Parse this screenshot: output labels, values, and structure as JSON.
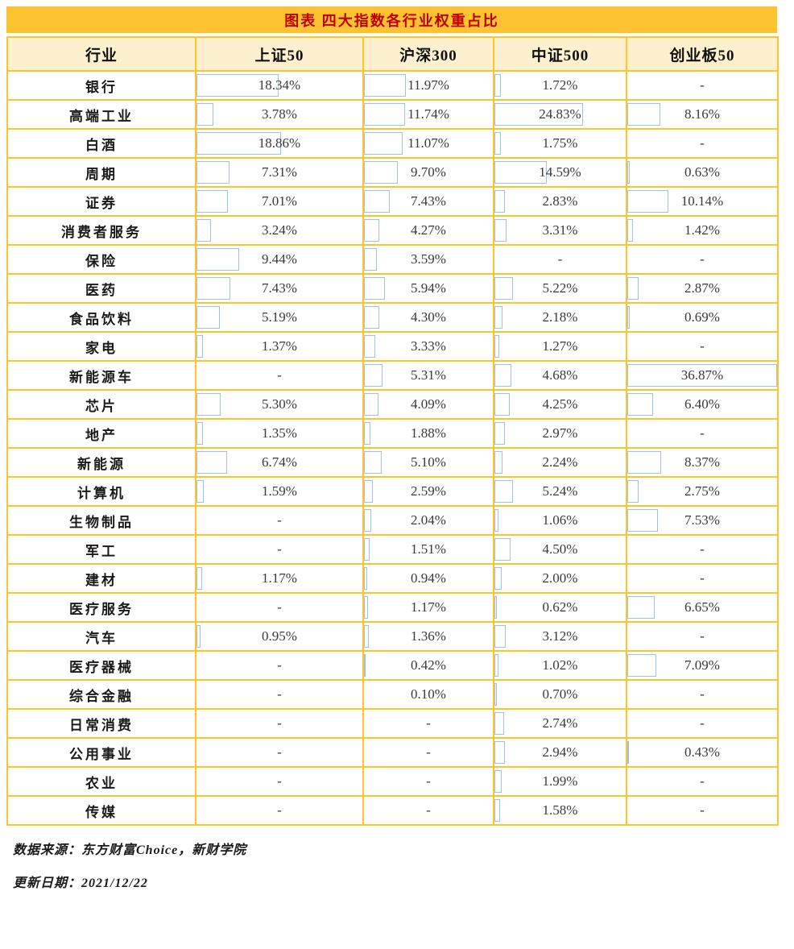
{
  "title": "图表 四大指数各行业权重占比",
  "table": {
    "columns": [
      "行业",
      "上证50",
      "沪深300",
      "中证500",
      "创业板50"
    ],
    "rows": [
      {
        "industry": "银行",
        "values": [
          "18.34%",
          "11.97%",
          "1.72%",
          "-"
        ]
      },
      {
        "industry": "高端工业",
        "values": [
          "3.78%",
          "11.74%",
          "24.83%",
          "8.16%"
        ]
      },
      {
        "industry": "白酒",
        "values": [
          "18.86%",
          "11.07%",
          "1.75%",
          "-"
        ]
      },
      {
        "industry": "周期",
        "values": [
          "7.31%",
          "9.70%",
          "14.59%",
          "0.63%"
        ]
      },
      {
        "industry": "证券",
        "values": [
          "7.01%",
          "7.43%",
          "2.83%",
          "10.14%"
        ]
      },
      {
        "industry": "消费者服务",
        "values": [
          "3.24%",
          "4.27%",
          "3.31%",
          "1.42%"
        ]
      },
      {
        "industry": "保险",
        "values": [
          "9.44%",
          "3.59%",
          "-",
          "-"
        ]
      },
      {
        "industry": "医药",
        "values": [
          "7.43%",
          "5.94%",
          "5.22%",
          "2.87%"
        ]
      },
      {
        "industry": "食品饮料",
        "values": [
          "5.19%",
          "4.30%",
          "2.18%",
          "0.69%"
        ]
      },
      {
        "industry": "家电",
        "values": [
          "1.37%",
          "3.33%",
          "1.27%",
          "-"
        ]
      },
      {
        "industry": "新能源车",
        "values": [
          "-",
          "5.31%",
          "4.68%",
          "36.87%"
        ]
      },
      {
        "industry": "芯片",
        "values": [
          "5.30%",
          "4.09%",
          "4.25%",
          "6.40%"
        ]
      },
      {
        "industry": "地产",
        "values": [
          "1.35%",
          "1.88%",
          "2.97%",
          "-"
        ]
      },
      {
        "industry": "新能源",
        "values": [
          "6.74%",
          "5.10%",
          "2.24%",
          "8.37%"
        ]
      },
      {
        "industry": "计算机",
        "values": [
          "1.59%",
          "2.59%",
          "5.24%",
          "2.75%"
        ]
      },
      {
        "industry": "生物制品",
        "values": [
          "-",
          "2.04%",
          "1.06%",
          "7.53%"
        ]
      },
      {
        "industry": "军工",
        "values": [
          "-",
          "1.51%",
          "4.50%",
          "-"
        ]
      },
      {
        "industry": "建材",
        "values": [
          "1.17%",
          "0.94%",
          "2.00%",
          "-"
        ]
      },
      {
        "industry": "医疗服务",
        "values": [
          "-",
          "1.17%",
          "0.62%",
          "6.65%"
        ]
      },
      {
        "industry": "汽车",
        "values": [
          "0.95%",
          "1.36%",
          "3.12%",
          "-"
        ]
      },
      {
        "industry": "医疗器械",
        "values": [
          "-",
          "0.42%",
          "1.02%",
          "7.09%"
        ]
      },
      {
        "industry": "综合金融",
        "values": [
          "-",
          "0.10%",
          "0.70%",
          "-"
        ]
      },
      {
        "industry": "日常消费",
        "values": [
          "-",
          "-",
          "2.74%",
          "-"
        ]
      },
      {
        "industry": "公用事业",
        "values": [
          "-",
          "-",
          "2.94%",
          "0.43%"
        ]
      },
      {
        "industry": "农业",
        "values": [
          "-",
          "-",
          "1.99%",
          "-"
        ]
      },
      {
        "industry": "传媒",
        "values": [
          "-",
          "-",
          "1.58%",
          "-"
        ]
      }
    ]
  },
  "footer": {
    "source_line": "数据来源：东方财富Choice，新财学院",
    "update_line": "更新日期：2021/12/22"
  },
  "colors": {
    "gold_band": "#FCC330",
    "border_gold": "#FFC32E",
    "header_bg": "#FCF0CE",
    "title_red": "#C00000",
    "databar_border": "#9CC2E5",
    "value_text": "#3A3A3A"
  },
  "chart_data": {
    "type": "table",
    "title": "图表 四大指数各行业权重占比",
    "categories": [
      "银行",
      "高端工业",
      "白酒",
      "周期",
      "证券",
      "消费者服务",
      "保险",
      "医药",
      "食品饮料",
      "家电",
      "新能源车",
      "芯片",
      "地产",
      "新能源",
      "计算机",
      "生物制品",
      "军工",
      "建材",
      "医疗服务",
      "汽车",
      "医疗器械",
      "综合金融",
      "日常消费",
      "公用事业",
      "农业",
      "传媒"
    ],
    "series": [
      {
        "name": "上证50",
        "values": [
          18.34,
          3.78,
          18.86,
          7.31,
          7.01,
          3.24,
          9.44,
          7.43,
          5.19,
          1.37,
          null,
          5.3,
          1.35,
          6.74,
          1.59,
          null,
          null,
          1.17,
          null,
          0.95,
          null,
          null,
          null,
          null,
          null,
          null
        ]
      },
      {
        "name": "沪深300",
        "values": [
          11.97,
          11.74,
          11.07,
          9.7,
          7.43,
          4.27,
          3.59,
          5.94,
          4.3,
          3.33,
          5.31,
          4.09,
          1.88,
          5.1,
          2.59,
          2.04,
          1.51,
          0.94,
          1.17,
          1.36,
          0.42,
          0.1,
          null,
          null,
          null,
          null
        ]
      },
      {
        "name": "中证500",
        "values": [
          1.72,
          24.83,
          1.75,
          14.59,
          2.83,
          3.31,
          null,
          5.22,
          2.18,
          1.27,
          4.68,
          4.25,
          2.97,
          2.24,
          5.24,
          1.06,
          4.5,
          2.0,
          0.62,
          3.12,
          1.02,
          0.7,
          2.74,
          2.94,
          1.99,
          1.58
        ]
      },
      {
        "name": "创业板50",
        "values": [
          null,
          8.16,
          null,
          0.63,
          10.14,
          1.42,
          null,
          2.87,
          0.69,
          null,
          36.87,
          6.4,
          null,
          8.37,
          2.75,
          7.53,
          null,
          null,
          6.65,
          null,
          7.09,
          null,
          null,
          0.43,
          null,
          null
        ]
      }
    ],
    "units": "%",
    "bar_scale_max": 36.87,
    "missing_marker": "-"
  }
}
